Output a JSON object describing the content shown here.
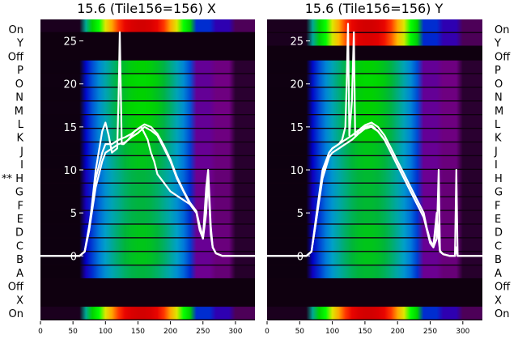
{
  "colors": {
    "background": "#0f000f",
    "profile_line": "#ffffff",
    "colormap": "nipy_spectral"
  },
  "chart_data": [
    {
      "type": "heatmap",
      "title": "15.6 (Tile156=156) X",
      "xlim": [
        0,
        330
      ],
      "x_ticks": [
        0,
        50,
        100,
        150,
        200,
        250,
        300
      ],
      "ylim": [
        -7.5,
        27.5
      ],
      "y_ticks": [
        0,
        5,
        10,
        15,
        20,
        25
      ],
      "side_labels": [
        "On",
        "Y",
        "Off",
        "P",
        "O",
        "N",
        "M",
        "L",
        "K",
        "J",
        "I",
        "H",
        "G",
        "F",
        "E",
        "D",
        "C",
        "B",
        "A",
        "Off",
        "X",
        "On"
      ],
      "marked_label_index": 11,
      "marker_text": "**",
      "rows": [
        {
          "label": "On",
          "active": true,
          "peak": 0.95
        },
        {
          "label": "Y",
          "active": false,
          "peak": 0.0
        },
        {
          "label": "Off",
          "active": false,
          "peak": 0.05
        },
        {
          "label": "P",
          "active": true,
          "peak": 0.5
        },
        {
          "label": "O",
          "active": true,
          "peak": 0.52
        },
        {
          "label": "N",
          "active": true,
          "peak": 0.5
        },
        {
          "label": "M",
          "active": true,
          "peak": 0.52
        },
        {
          "label": "L",
          "active": true,
          "peak": 0.5
        },
        {
          "label": "K",
          "active": true,
          "peak": 0.5
        },
        {
          "label": "J",
          "active": true,
          "peak": 0.48
        },
        {
          "label": "I",
          "active": true,
          "peak": 0.48
        },
        {
          "label": "H",
          "active": true,
          "peak": 0.45
        },
        {
          "label": "G",
          "active": true,
          "peak": 0.45
        },
        {
          "label": "F",
          "active": true,
          "peak": 0.45
        },
        {
          "label": "E",
          "active": true,
          "peak": 0.45
        },
        {
          "label": "D",
          "active": true,
          "peak": 0.48
        },
        {
          "label": "C",
          "active": true,
          "peak": 0.48
        },
        {
          "label": "B",
          "active": true,
          "peak": 0.48
        },
        {
          "label": "A",
          "active": true,
          "peak": 0.45
        },
        {
          "label": "Off",
          "active": false,
          "peak": 0.05
        },
        {
          "label": "X",
          "active": false,
          "peak": 0.0
        },
        {
          "label": "On",
          "active": true,
          "peak": 0.95
        }
      ],
      "series": [
        {
          "x": [
            0,
            60,
            68,
            75,
            85,
            95,
            100,
            110,
            120,
            130,
            140,
            150,
            160,
            170,
            180,
            190,
            200,
            210,
            220,
            230,
            240,
            245,
            250,
            255,
            258,
            262,
            265,
            270,
            280,
            290,
            310,
            330
          ],
          "y": [
            0,
            0,
            0.5,
            3,
            8,
            11,
            12,
            12.5,
            13,
            13.2,
            13.8,
            14.3,
            15,
            14.6,
            14,
            12.5,
            11,
            9,
            7.5,
            6,
            5,
            3.5,
            2,
            6,
            9,
            3,
            1,
            0.3,
            0,
            0,
            0,
            0
          ]
        },
        {
          "x": [
            0,
            60,
            68,
            75,
            85,
            95,
            100,
            110,
            120,
            130,
            140,
            150,
            160,
            170,
            180,
            190,
            200,
            210,
            220,
            230,
            240,
            245,
            250,
            255,
            258,
            262,
            265,
            270,
            280,
            290,
            310,
            330
          ],
          "y": [
            0,
            0,
            0.5,
            3.5,
            9,
            12,
            13,
            13,
            13.5,
            13.8,
            14.2,
            14.8,
            15.3,
            15,
            14.2,
            12.8,
            11.2,
            9.2,
            7.6,
            6.2,
            5.2,
            3.5,
            2.2,
            8,
            10,
            3.5,
            1,
            0.3,
            0,
            0,
            0,
            0
          ]
        },
        {
          "x": [
            0,
            60,
            68,
            75,
            85,
            95,
            100,
            105,
            110,
            118,
            120,
            122,
            125,
            128,
            135,
            145,
            155,
            165,
            170,
            175,
            180,
            190,
            200,
            210,
            220,
            230,
            240,
            245,
            250,
            255,
            258,
            262,
            265,
            270,
            280,
            290,
            310,
            330
          ],
          "y": [
            0,
            0,
            0.5,
            3,
            10,
            14.5,
            15.5,
            14,
            12,
            12.5,
            18,
            26,
            13,
            13,
            13.5,
            14.5,
            15,
            13.5,
            12,
            11,
            9.5,
            8.5,
            7.5,
            7,
            6.5,
            6,
            5,
            3,
            2,
            5,
            9,
            2.5,
            1,
            0.3,
            0,
            0,
            0,
            0
          ]
        }
      ]
    },
    {
      "type": "heatmap",
      "title": "15.6 (Tile156=156) Y",
      "xlim": [
        0,
        330
      ],
      "x_ticks": [
        0,
        50,
        100,
        150,
        200,
        250,
        300
      ],
      "ylim": [
        -7.5,
        27.5
      ],
      "y_ticks": [
        0,
        5,
        10,
        15,
        20,
        25
      ],
      "side_labels": [
        "On",
        "Y",
        "Off",
        "P",
        "O",
        "N",
        "M",
        "L",
        "K",
        "J",
        "I",
        "H",
        "G",
        "F",
        "E",
        "D",
        "C",
        "B",
        "A",
        "Off",
        "X",
        "On"
      ],
      "marked_label_index": -1,
      "marker_text": "",
      "rows": [
        {
          "label": "On",
          "active": true,
          "peak": 0.95
        },
        {
          "label": "Y",
          "active": true,
          "peak": 0.93
        },
        {
          "label": "Off",
          "active": false,
          "peak": 0.05
        },
        {
          "label": "P",
          "active": true,
          "peak": 0.5
        },
        {
          "label": "O",
          "active": true,
          "peak": 0.52
        },
        {
          "label": "N",
          "active": true,
          "peak": 0.5
        },
        {
          "label": "M",
          "active": true,
          "peak": 0.5
        },
        {
          "label": "L",
          "active": true,
          "peak": 0.5
        },
        {
          "label": "K",
          "active": true,
          "peak": 0.5
        },
        {
          "label": "J",
          "active": true,
          "peak": 0.48
        },
        {
          "label": "I",
          "active": true,
          "peak": 0.48
        },
        {
          "label": "H",
          "active": true,
          "peak": 0.46
        },
        {
          "label": "G",
          "active": true,
          "peak": 0.46
        },
        {
          "label": "F",
          "active": true,
          "peak": 0.46
        },
        {
          "label": "E",
          "active": true,
          "peak": 0.46
        },
        {
          "label": "D",
          "active": true,
          "peak": 0.48
        },
        {
          "label": "C",
          "active": true,
          "peak": 0.48
        },
        {
          "label": "B",
          "active": true,
          "peak": 0.48
        },
        {
          "label": "A",
          "active": true,
          "peak": 0.46
        },
        {
          "label": "Off",
          "active": false,
          "peak": 0.05
        },
        {
          "label": "X",
          "active": false,
          "peak": 0.0
        },
        {
          "label": "On",
          "active": true,
          "peak": 0.95
        }
      ],
      "series": [
        {
          "x": [
            0,
            60,
            68,
            75,
            85,
            95,
            100,
            110,
            120,
            130,
            140,
            150,
            160,
            170,
            180,
            190,
            200,
            210,
            220,
            230,
            240,
            245,
            250,
            255,
            260,
            265,
            270,
            280,
            288,
            290,
            292,
            300,
            330
          ],
          "y": [
            0,
            0,
            0.5,
            4,
            9,
            11.5,
            12,
            12.5,
            13,
            13.5,
            14.2,
            14.8,
            15,
            14.5,
            13.5,
            12,
            10.5,
            9,
            7.5,
            6,
            4.5,
            3,
            1.5,
            1,
            4,
            0.5,
            0.2,
            0,
            0,
            1,
            0,
            0,
            0
          ]
        },
        {
          "x": [
            0,
            60,
            68,
            75,
            85,
            95,
            100,
            110,
            120,
            130,
            140,
            150,
            160,
            170,
            180,
            190,
            200,
            210,
            220,
            230,
            240,
            245,
            250,
            255,
            260,
            265,
            270,
            280,
            288,
            290,
            292,
            300,
            330
          ],
          "y": [
            0,
            0,
            0.5,
            4.5,
            10,
            12,
            12.5,
            13,
            13.5,
            14,
            14.6,
            15.2,
            15.5,
            15,
            14,
            12.5,
            11,
            9.5,
            8,
            6.5,
            5,
            3.2,
            1.8,
            1.2,
            5,
            0.6,
            0.2,
            0,
            0,
            1,
            0,
            0,
            0
          ]
        },
        {
          "x": [
            0,
            60,
            68,
            75,
            85,
            95,
            100,
            110,
            115,
            120,
            122,
            124,
            126,
            130,
            133,
            135,
            137,
            140,
            150,
            160,
            170,
            180,
            190,
            200,
            210,
            220,
            230,
            240,
            245,
            250,
            255,
            260,
            263,
            265,
            270,
            280,
            288,
            290,
            292,
            300,
            330
          ],
          "y": [
            0,
            0,
            0.5,
            4,
            9.5,
            12,
            12.5,
            13,
            13.5,
            15,
            20,
            27,
            14,
            18,
            26,
            14,
            14,
            14.5,
            15,
            15.2,
            14.5,
            13.5,
            12,
            10.5,
            9,
            7.5,
            6,
            4.5,
            3,
            1.5,
            1,
            2,
            10,
            0.5,
            0.2,
            0,
            0,
            10,
            0,
            0,
            0
          ]
        }
      ]
    }
  ]
}
